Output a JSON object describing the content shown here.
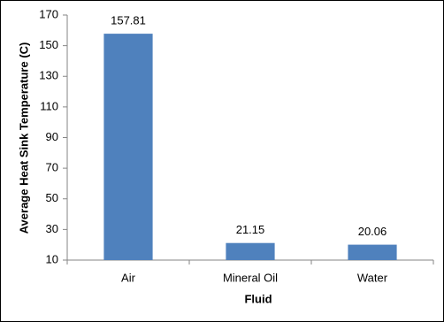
{
  "chart_data": {
    "type": "bar",
    "x_label": "Fluid",
    "y_label": "Average Heat Sink Temperature (C)",
    "categories": [
      "Air",
      "Mineral Oil",
      "Water"
    ],
    "values": [
      157.81,
      21.15,
      20.06
    ],
    "color": "#4f81bd",
    "ylim": [
      10,
      170
    ],
    "yticks": [
      10,
      30,
      50,
      70,
      90,
      110,
      130,
      150,
      170
    ],
    "grid": false
  }
}
